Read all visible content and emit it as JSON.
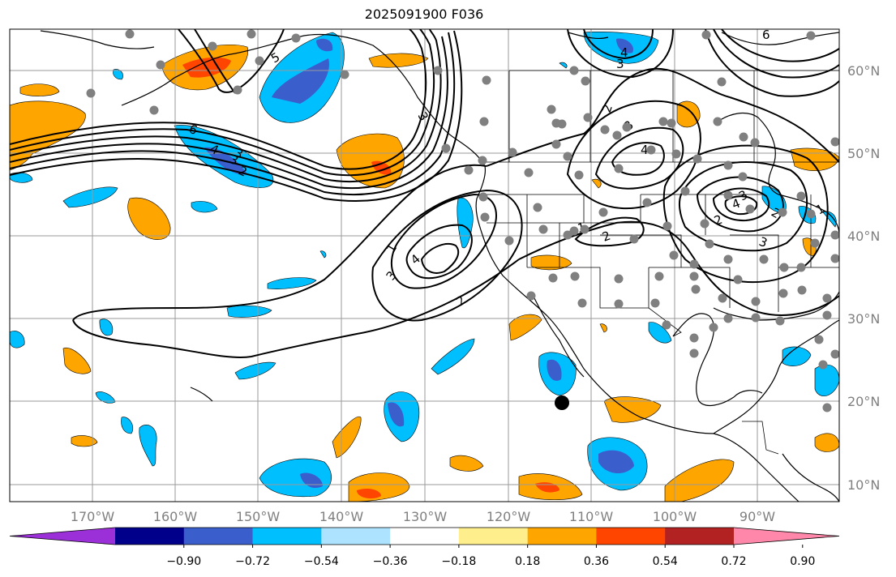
{
  "title": "2025091900 F036",
  "map": {
    "lat_labels": [
      "60°N",
      "50°N",
      "40°N",
      "30°N",
      "20°N",
      "10°N"
    ],
    "lon_labels": [
      "170°W",
      "160°W",
      "150°W",
      "140°W",
      "130°W",
      "120°W",
      "110°W",
      "100°W",
      "90°W"
    ],
    "contour_labels": [
      "1",
      "2",
      "3",
      "4",
      "5",
      "6",
      "2",
      "3",
      "4",
      "3",
      "2",
      "3",
      "1",
      "4",
      "3",
      "2",
      "4",
      "3",
      "2",
      "4",
      "3",
      "6",
      "3",
      "2",
      "1"
    ],
    "colorbar": {
      "colors": [
        "#9b30d9",
        "#00008b",
        "#3a5fcd",
        "#00bfff",
        "#aee3ff",
        "#ffffff",
        "#ffee8c",
        "#ffa500",
        "#ff4500",
        "#b22222",
        "#ff88aa"
      ],
      "ticks": [
        "−0.90",
        "−0.72",
        "−0.54",
        "−0.36",
        "−0.18",
        "0.18",
        "0.36",
        "0.54",
        "0.72",
        "0.90"
      ]
    }
  }
}
